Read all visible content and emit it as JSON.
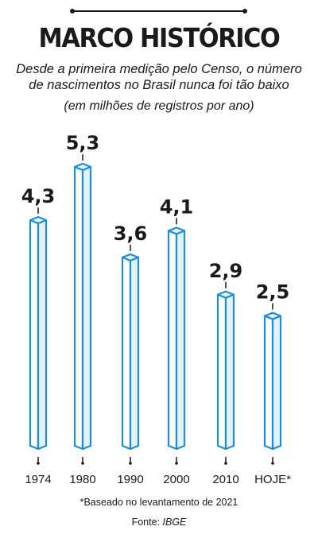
{
  "header": {
    "title": "MARCO HISTÓRICO",
    "subtitle": "Desde a primeira medição pelo Censo, o número de nascimentos no Brasil nunca foi tão baixo",
    "unit_note": "(em milhões de registros por ano)"
  },
  "chart_data": {
    "type": "bar",
    "title": "MARCO HISTÓRICO",
    "subtitle": "Desde a primeira medição pelo Censo, o número de nascimentos no Brasil nunca foi tão baixo",
    "ylabel": "",
    "xlabel": "",
    "categories": [
      "1974",
      "1980",
      "1990",
      "2000",
      "2010",
      "HOJE*"
    ],
    "values": [
      4.3,
      5.3,
      3.6,
      4.1,
      2.9,
      2.5
    ],
    "value_labels": [
      "4,3",
      "5,3",
      "3,6",
      "4,1",
      "2,9",
      "2,5"
    ],
    "ylim": [
      0,
      5.3
    ],
    "grid": false,
    "legend": "none",
    "bar_style": "3d-column",
    "colors": {
      "bar_stroke": "#1e8fd0",
      "bar_fill": "#e4f3fb",
      "bar_face_left": "#ffffff",
      "text": "#1a1a1a"
    }
  },
  "footer": {
    "footnote": "*Baseado no levantamento de 2021",
    "source_prefix": "Fonte: ",
    "source_name": "IBGE"
  }
}
